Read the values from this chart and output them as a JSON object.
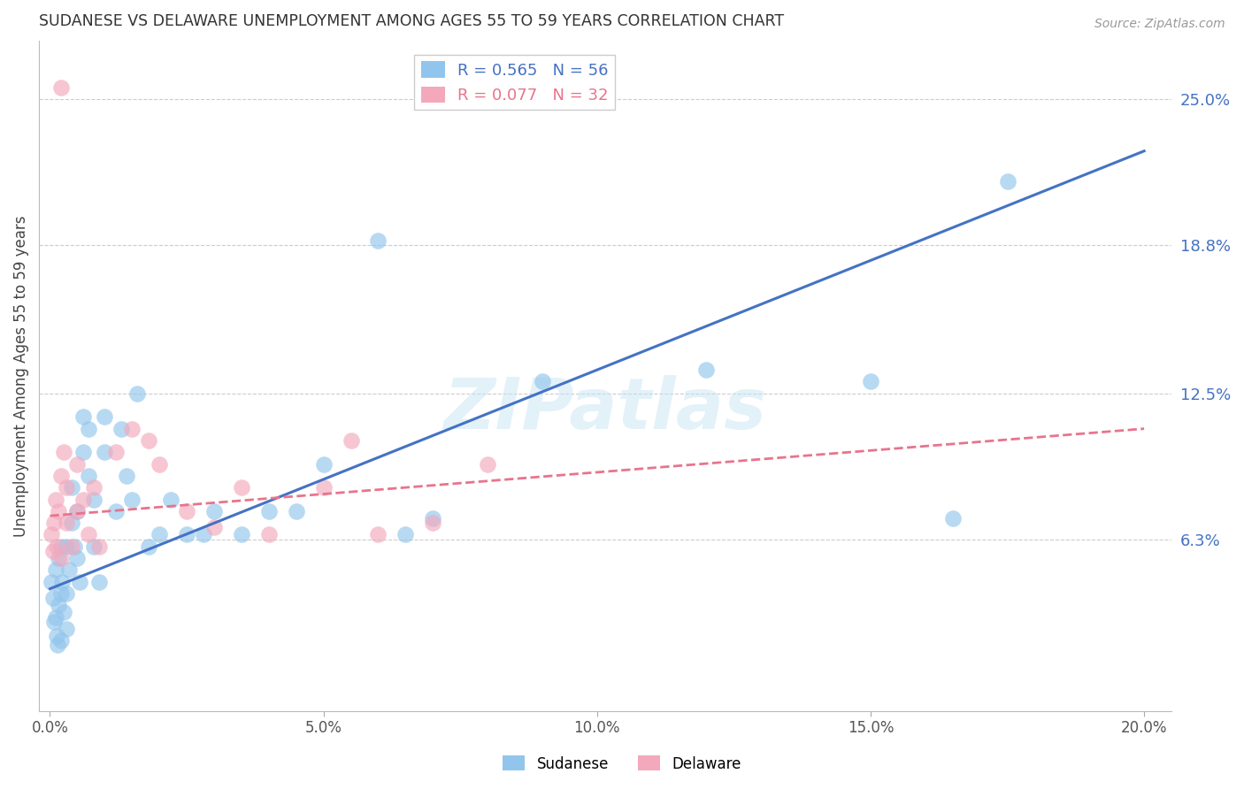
{
  "title": "SUDANESE VS DELAWARE UNEMPLOYMENT AMONG AGES 55 TO 59 YEARS CORRELATION CHART",
  "source": "Source: ZipAtlas.com",
  "xlabel_ticks": [
    "0.0%",
    "5.0%",
    "10.0%",
    "15.0%",
    "20.0%"
  ],
  "xlabel_vals": [
    0.0,
    0.05,
    0.1,
    0.15,
    0.2
  ],
  "ylabel": "Unemployment Among Ages 55 to 59 years",
  "ytick_labels": [
    "6.3%",
    "12.5%",
    "18.8%",
    "25.0%"
  ],
  "ytick_vals": [
    0.063,
    0.125,
    0.188,
    0.25
  ],
  "xlim": [
    -0.002,
    0.205
  ],
  "ylim": [
    -0.01,
    0.275
  ],
  "sudanese_color": "#92C5EC",
  "delaware_color": "#F4A8BC",
  "sudanese_R": 0.565,
  "sudanese_N": 56,
  "delaware_R": 0.077,
  "delaware_N": 32,
  "sudanese_line_color": "#4472C4",
  "delaware_line_color": "#E8748C",
  "watermark": "ZIPatlas",
  "sudanese_line_x0": 0.0,
  "sudanese_line_y0": 0.042,
  "sudanese_line_x1": 0.2,
  "sudanese_line_y1": 0.228,
  "delaware_line_x0": 0.0,
  "delaware_line_y0": 0.073,
  "delaware_line_x1": 0.2,
  "delaware_line_y1": 0.11,
  "sudanese_x": [
    0.0003,
    0.0005,
    0.0007,
    0.001,
    0.001,
    0.0012,
    0.0013,
    0.0015,
    0.0015,
    0.002,
    0.002,
    0.002,
    0.0022,
    0.0025,
    0.003,
    0.003,
    0.003,
    0.0035,
    0.004,
    0.004,
    0.0045,
    0.005,
    0.005,
    0.0055,
    0.006,
    0.006,
    0.007,
    0.007,
    0.008,
    0.008,
    0.009,
    0.01,
    0.01,
    0.012,
    0.013,
    0.014,
    0.015,
    0.016,
    0.018,
    0.02,
    0.022,
    0.025,
    0.028,
    0.03,
    0.035,
    0.04,
    0.045,
    0.05,
    0.06,
    0.065,
    0.07,
    0.09,
    0.12,
    0.15,
    0.165,
    0.175
  ],
  "sudanese_y": [
    0.045,
    0.038,
    0.028,
    0.03,
    0.05,
    0.022,
    0.018,
    0.035,
    0.055,
    0.06,
    0.04,
    0.02,
    0.045,
    0.032,
    0.06,
    0.04,
    0.025,
    0.05,
    0.07,
    0.085,
    0.06,
    0.055,
    0.075,
    0.045,
    0.115,
    0.1,
    0.09,
    0.11,
    0.06,
    0.08,
    0.045,
    0.1,
    0.115,
    0.075,
    0.11,
    0.09,
    0.08,
    0.125,
    0.06,
    0.065,
    0.08,
    0.065,
    0.065,
    0.075,
    0.065,
    0.075,
    0.075,
    0.095,
    0.19,
    0.065,
    0.072,
    0.13,
    0.135,
    0.13,
    0.072,
    0.215
  ],
  "delaware_x": [
    0.0003,
    0.0005,
    0.0008,
    0.001,
    0.0012,
    0.0015,
    0.002,
    0.002,
    0.0025,
    0.003,
    0.003,
    0.004,
    0.005,
    0.005,
    0.006,
    0.007,
    0.008,
    0.009,
    0.012,
    0.015,
    0.018,
    0.02,
    0.025,
    0.03,
    0.035,
    0.04,
    0.05,
    0.055,
    0.06,
    0.07,
    0.08,
    0.002
  ],
  "delaware_y": [
    0.065,
    0.058,
    0.07,
    0.08,
    0.06,
    0.075,
    0.055,
    0.09,
    0.1,
    0.07,
    0.085,
    0.06,
    0.095,
    0.075,
    0.08,
    0.065,
    0.085,
    0.06,
    0.1,
    0.11,
    0.105,
    0.095,
    0.075,
    0.068,
    0.085,
    0.065,
    0.085,
    0.105,
    0.065,
    0.07,
    0.095,
    0.255
  ]
}
